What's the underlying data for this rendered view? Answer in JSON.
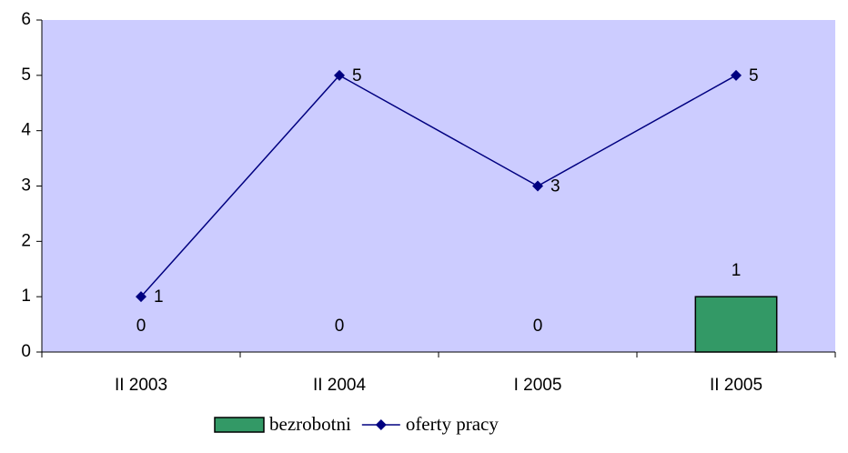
{
  "chart_data": {
    "type": "combo",
    "categories": [
      "II 2003",
      "II 2004",
      "I 2005",
      "II 2005"
    ],
    "series": [
      {
        "name": "bezrobotni",
        "type": "bar",
        "color": "#339966",
        "values": [
          0,
          0,
          0,
          1
        ]
      },
      {
        "name": "oferty pracy",
        "type": "line",
        "color": "#000080",
        "values": [
          1,
          5,
          3,
          5
        ]
      }
    ],
    "ylim": [
      0,
      6
    ],
    "yticks": [
      0,
      1,
      2,
      3,
      4,
      5,
      6
    ],
    "plot_background": "#ccccff",
    "legend": "bottom"
  }
}
